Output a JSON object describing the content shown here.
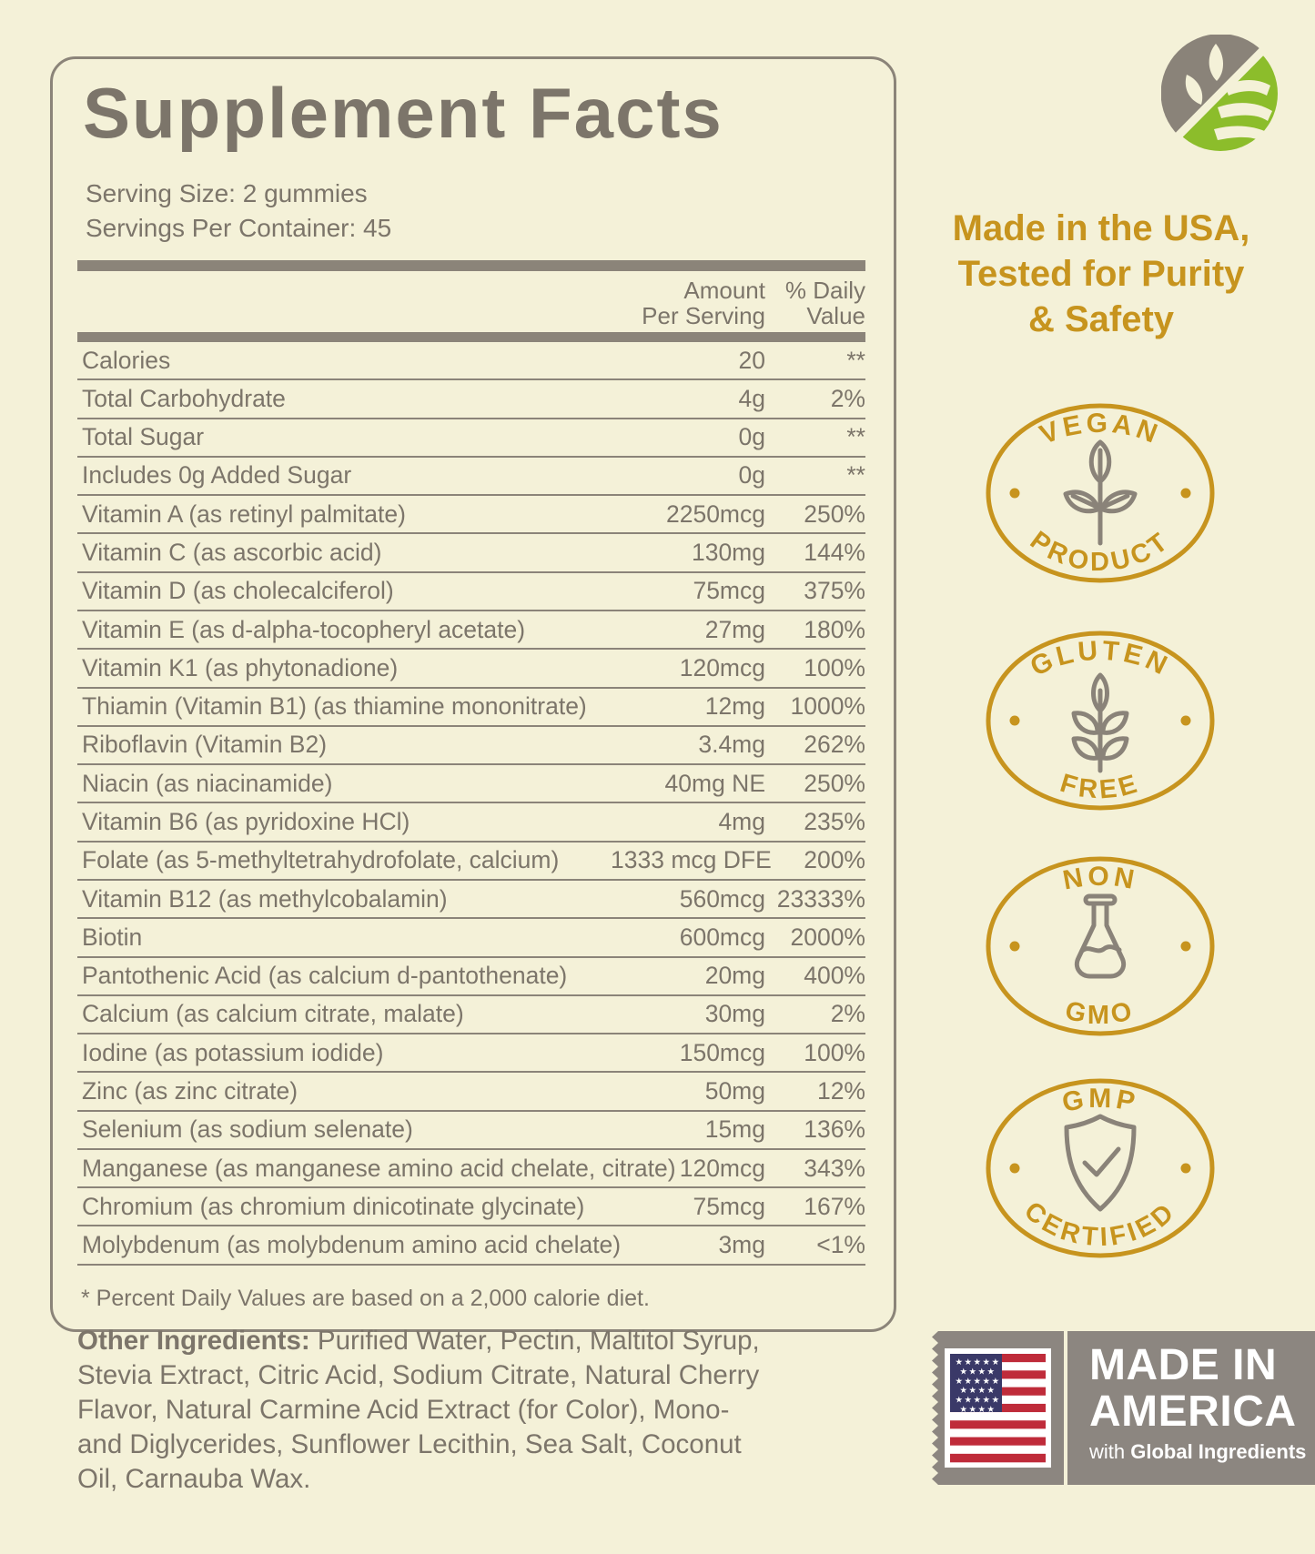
{
  "panel": {
    "title": "Supplement Facts",
    "serving_size": "Serving Size: 2 gummies",
    "servings_per_container": "Servings Per Container: 45",
    "header": {
      "amount": "Amount\nPer Serving",
      "daily_value": "% Daily\nValue"
    },
    "rows": [
      {
        "label": "Calories",
        "amount": "20",
        "dv": "**"
      },
      {
        "label": "Total Carbohydrate",
        "amount": "4g",
        "dv": "2%"
      },
      {
        "label": "Total Sugar",
        "amount": "0g",
        "dv": "**"
      },
      {
        "label": "Includes 0g Added Sugar",
        "amount": "0g",
        "dv": "**"
      },
      {
        "label": "Vitamin A (as retinyl palmitate)",
        "amount": "2250mcg",
        "dv": "250%"
      },
      {
        "label": "Vitamin C (as ascorbic acid)",
        "amount": "130mg",
        "dv": "144%"
      },
      {
        "label": "Vitamin D (as cholecalciferol)",
        "amount": "75mcg",
        "dv": "375%"
      },
      {
        "label": "Vitamin E (as d-alpha-tocopheryl acetate)",
        "amount": "27mg",
        "dv": "180%"
      },
      {
        "label": "Vitamin K1 (as phytonadione)",
        "amount": "120mcg",
        "dv": "100%"
      },
      {
        "label": "Thiamin (Vitamin B1) (as thiamine mononitrate)",
        "amount": "12mg",
        "dv": "1000%"
      },
      {
        "label": "Riboflavin (Vitamin B2)",
        "amount": "3.4mg",
        "dv": "262%"
      },
      {
        "label": "Niacin (as niacinamide)",
        "amount": "40mg NE",
        "dv": "250%"
      },
      {
        "label": "Vitamin B6 (as pyridoxine HCl)",
        "amount": "4mg",
        "dv": "235%"
      },
      {
        "label": "Folate (as 5-methyltetrahydrofolate, calcium)",
        "amount": "1333 mcg DFE",
        "dv": "200%"
      },
      {
        "label": "Vitamin B12 (as methylcobalamin)",
        "amount": "560mcg",
        "dv": "23333%"
      },
      {
        "label": "Biotin",
        "amount": "600mcg",
        "dv": "2000%"
      },
      {
        "label": "Pantothenic Acid (as calcium d-pantothenate)",
        "amount": "20mg",
        "dv": "400%"
      },
      {
        "label": "Calcium (as calcium citrate, malate)",
        "amount": "30mg",
        "dv": "2%"
      },
      {
        "label": "Iodine (as potassium iodide)",
        "amount": "150mcg",
        "dv": "100%"
      },
      {
        "label": "Zinc (as zinc citrate)",
        "amount": "50mg",
        "dv": "12%"
      },
      {
        "label": "Selenium (as sodium selenate)",
        "amount": "15mg",
        "dv": "136%"
      },
      {
        "label": "Manganese (as manganese amino acid chelate, citrate)",
        "amount": "120mcg",
        "dv": "343%"
      },
      {
        "label": "Chromium (as chromium dinicotinate glycinate)",
        "amount": "75mcg",
        "dv": "167%"
      },
      {
        "label": "Molybdenum (as molybdenum amino acid chelate)",
        "amount": "3mg",
        "dv": "<1%"
      }
    ],
    "footnote": "* Percent Daily Values are based on a 2,000 calorie diet."
  },
  "brand": {
    "logo_icon": "leaf-circle-logo"
  },
  "tagline": {
    "lines": [
      "Made in the USA,",
      "Tested for Purity",
      "& Safety"
    ]
  },
  "badges": [
    {
      "top": "VEGAN",
      "bottom": "PRODUCT",
      "icon": "plant-icon"
    },
    {
      "top": "GLUTEN",
      "bottom": "FREE",
      "icon": "wheat-icon"
    },
    {
      "top": "NON",
      "bottom": "GMO",
      "icon": "flask-icon"
    },
    {
      "top": "GMP",
      "bottom": "CERTIFIED",
      "icon": "shield-check-icon"
    }
  ],
  "made_in_america": {
    "line1": "MADE IN",
    "line2": "AMERICA",
    "sub_prefix": "with ",
    "sub_bold": "Global Ingredients",
    "flag_icon": "us-flag-icon"
  },
  "other_ingredients": {
    "label": "Other Ingredients:",
    "line1_rest": " Purified Water, Pectin, Maltitol Syrup,",
    "lines": [
      "Stevia Extract, Citric Acid, Sodium Citrate, Natural Cherry",
      "Flavor, Natural Carmine Acid Extract (for Color), Mono-",
      "and Diglycerides, Sunflower Lecithin, Sea Salt, Coconut",
      "Oil, Carnauba Wax."
    ]
  },
  "colors": {
    "background": "#F4F1D8",
    "panel_line": "#8B8479",
    "text": "#7C756A",
    "gold": "#C7941E",
    "icon_gray": "#8A8379",
    "logo_green": "#8CBD2B",
    "stamp_gray": "#8C8680",
    "flag_red": "#BF2B3A",
    "flag_blue": "#3A3968",
    "white": "#FFFFFF"
  }
}
